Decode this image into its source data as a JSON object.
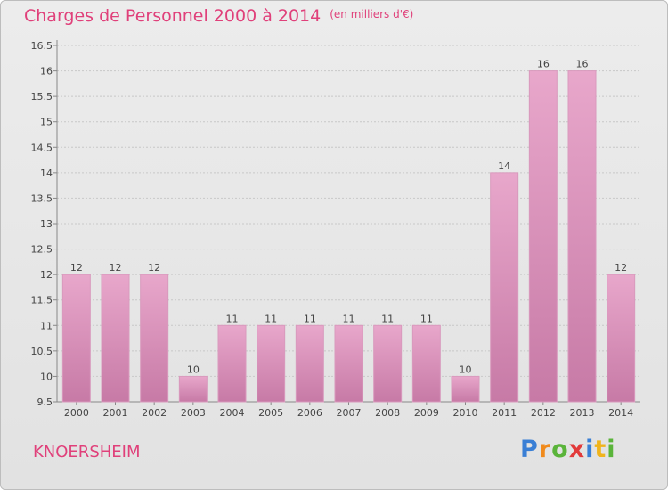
{
  "title": "Charges de Personnel 2000 à 2014",
  "subtitle": "(en milliers d'€)",
  "city": "KNOERSHEIM",
  "brand": {
    "p": "P",
    "r": "r",
    "o": "o",
    "x": "x",
    "i1": "i",
    "t": "t",
    "i2": "i"
  },
  "colors": {
    "accent": "#e0407a",
    "bar_light": "#e8a7cb",
    "bar_dark": "#c77aa6"
  },
  "chart_data": {
    "type": "bar",
    "categories": [
      "2000",
      "2001",
      "2002",
      "2003",
      "2004",
      "2005",
      "2006",
      "2007",
      "2008",
      "2009",
      "2010",
      "2011",
      "2012",
      "2013",
      "2014"
    ],
    "values": [
      12,
      12,
      12,
      10,
      11,
      11,
      11,
      11,
      11,
      11,
      10,
      14,
      16,
      16,
      12
    ],
    "value_labels": [
      "12",
      "12",
      "12",
      "10",
      "11",
      "11",
      "11",
      "11",
      "11",
      "11",
      "10",
      "14",
      "16",
      "16",
      "12"
    ],
    "yticks": [
      "9.5",
      "10",
      "10.5",
      "11",
      "11.5",
      "12",
      "12.5",
      "13",
      "13.5",
      "14",
      "14.5",
      "15",
      "15.5",
      "16",
      "16.5"
    ],
    "ylim": [
      9.5,
      16.5
    ],
    "grid": true
  }
}
